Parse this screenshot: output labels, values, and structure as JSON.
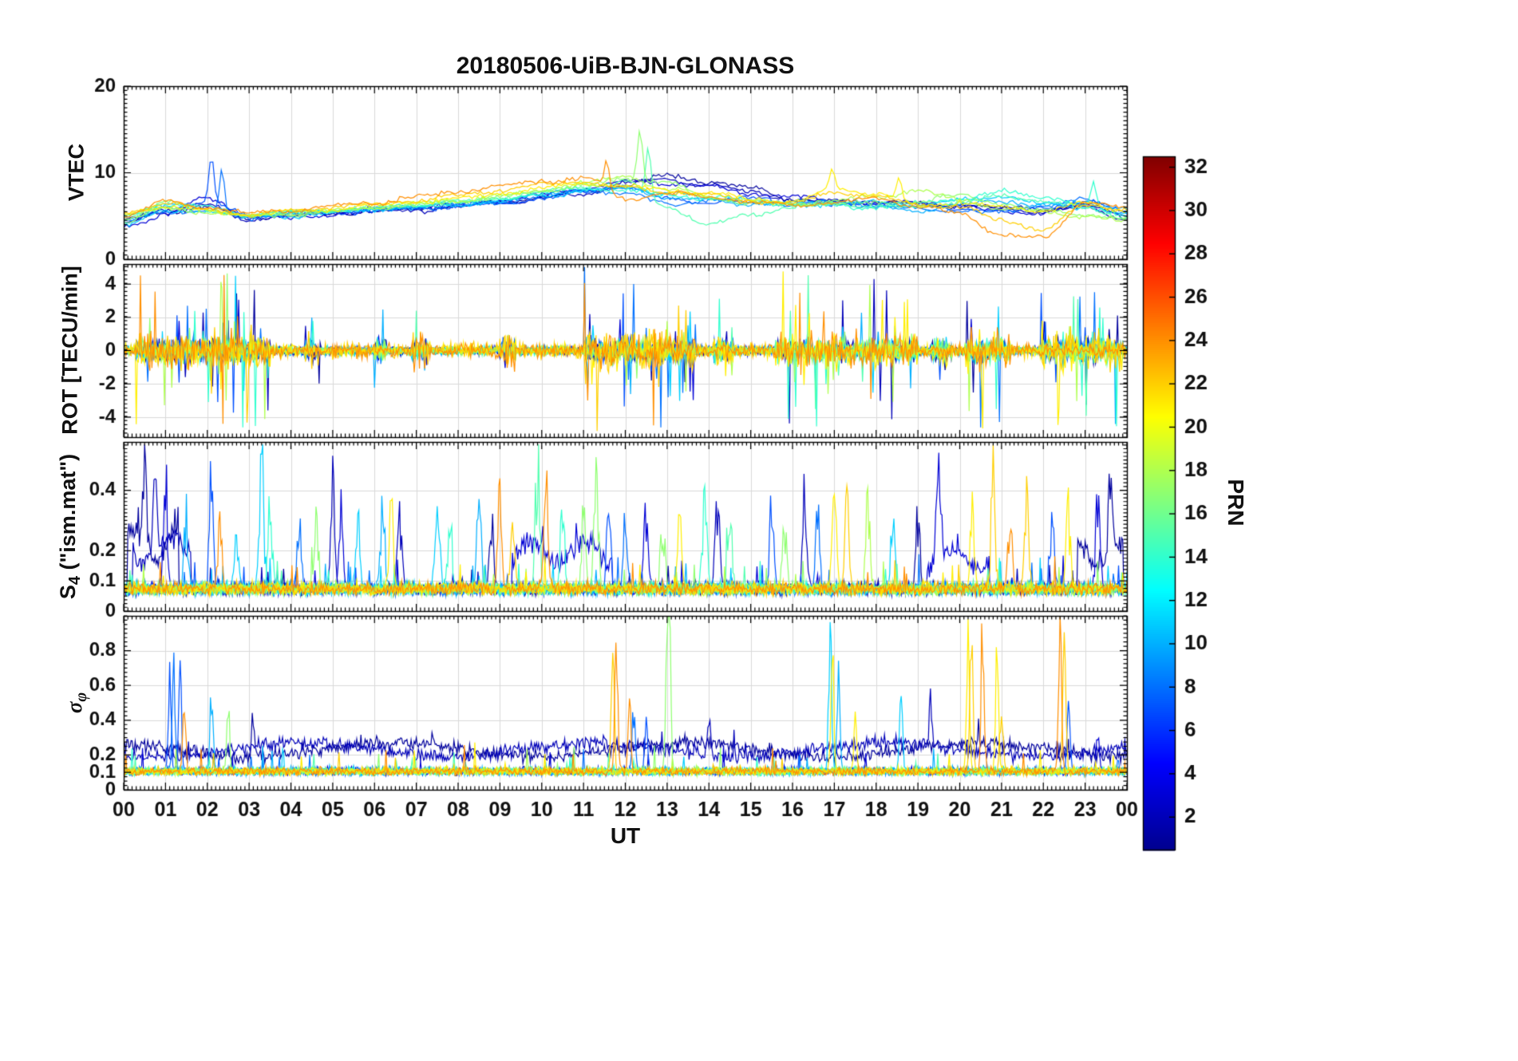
{
  "chart_data": {
    "type": "line",
    "title": "20180506-UiB-BJN-GLONASS",
    "xlabel": "UT",
    "x_range": [
      0,
      24
    ],
    "xticks": [
      0,
      1,
      2,
      3,
      4,
      5,
      6,
      7,
      8,
      9,
      10,
      11,
      12,
      13,
      14,
      15,
      16,
      17,
      18,
      19,
      20,
      21,
      22,
      23,
      24
    ],
    "xtick_labels": [
      "00",
      "01",
      "02",
      "03",
      "04",
      "05",
      "06",
      "07",
      "08",
      "09",
      "10",
      "11",
      "12",
      "13",
      "14",
      "15",
      "16",
      "17",
      "18",
      "19",
      "20",
      "21",
      "22",
      "23",
      "00"
    ],
    "grid": true,
    "style": {
      "grid_color": "#d9d9d9",
      "axis_color": "#000000",
      "background": "#ffffff",
      "tick_label_color": "#111111"
    },
    "prns": [
      1,
      2,
      3,
      7,
      8,
      10,
      11,
      14,
      15,
      17,
      18,
      21,
      22,
      24
    ],
    "colorbar": {
      "label": "PRN",
      "range": [
        0.5,
        32.5
      ],
      "ticks": [
        2,
        4,
        6,
        8,
        10,
        12,
        14,
        16,
        18,
        20,
        22,
        24,
        26,
        28,
        30,
        32
      ],
      "colormap_stops": [
        {
          "pos": 0.0,
          "color": "#00008F"
        },
        {
          "pos": 0.125,
          "color": "#0000FF"
        },
        {
          "pos": 0.375,
          "color": "#00FFFF"
        },
        {
          "pos": 0.625,
          "color": "#FFFF00"
        },
        {
          "pos": 0.875,
          "color": "#FF0000"
        },
        {
          "pos": 1.0,
          "color": "#800000"
        }
      ]
    },
    "panels": [
      {
        "name": "VTEC",
        "ylabel_base": "VTEC",
        "ylim": [
          0,
          20
        ],
        "yticks": [
          0,
          10,
          20
        ],
        "ytick_labels": [
          "0",
          "10",
          "20"
        ],
        "yminor": 0.5,
        "noise": 0.5,
        "series": [
          {
            "prn": 1,
            "hourly": [
              4.5,
              5.5,
              6.0,
              4.8,
              5.0,
              5.3,
              5.6,
              5.8,
              6.2,
              6.6,
              7.2,
              7.8,
              8.6,
              9.6,
              9.0,
              8.2,
              7.0,
              6.6,
              6.8,
              6.4,
              6.2,
              6.0,
              5.8,
              6.2,
              5.0
            ]
          },
          {
            "prn": 2,
            "hourly": [
              4.2,
              5.8,
              6.2,
              4.6,
              5.2,
              5.5,
              5.4,
              5.7,
              6.0,
              6.5,
              7.0,
              7.6,
              8.8,
              9.2,
              8.6,
              7.8,
              6.8,
              6.4,
              6.6,
              6.2,
              6.4,
              5.8,
              5.6,
              6.0,
              4.6
            ]
          },
          {
            "prn": 3,
            "hourly": [
              3.8,
              5.2,
              7.0,
              5.0,
              4.8,
              5.2,
              5.8,
              6.0,
              6.3,
              6.8,
              7.4,
              8.2,
              9.0,
              8.8,
              8.4,
              7.6,
              7.2,
              6.8,
              6.4,
              6.6,
              6.0,
              5.6,
              5.4,
              6.4,
              5.2
            ]
          },
          {
            "prn": 7,
            "hourly": [
              4.0,
              6.0,
              6.5,
              5.2,
              5.0,
              5.4,
              5.6,
              5.9,
              6.1,
              6.4,
              7.0,
              7.8,
              8.4,
              7.0,
              6.6,
              7.0,
              6.6,
              6.2,
              6.6,
              6.0,
              5.8,
              5.6,
              6.0,
              6.6,
              5.6
            ]
          },
          {
            "prn": 8,
            "hourly": [
              4.4,
              5.6,
              5.4,
              4.8,
              5.2,
              5.6,
              5.8,
              6.0,
              6.2,
              6.6,
              7.2,
              8.0,
              7.6,
              6.4,
              6.8,
              6.6,
              6.4,
              6.6,
              6.2,
              5.8,
              5.6,
              5.4,
              6.2,
              6.8,
              5.4
            ]
          },
          {
            "prn": 10,
            "hourly": [
              4.6,
              6.2,
              5.8,
              5.0,
              5.4,
              5.5,
              5.7,
              6.0,
              6.4,
              6.8,
              7.4,
              8.0,
              8.2,
              7.2,
              6.8,
              6.4,
              6.6,
              6.8,
              6.0,
              5.6,
              6.4,
              6.8,
              6.2,
              6.6,
              5.8
            ]
          },
          {
            "prn": 11,
            "hourly": [
              4.2,
              5.4,
              5.6,
              4.9,
              5.1,
              5.4,
              5.8,
              6.1,
              6.3,
              6.7,
              7.3,
              7.9,
              8.3,
              7.6,
              7.0,
              6.6,
              6.2,
              6.4,
              6.6,
              6.2,
              6.8,
              7.4,
              6.4,
              6.0,
              5.2
            ]
          },
          {
            "prn": 14,
            "hourly": [
              4.8,
              6.4,
              6.0,
              5.1,
              5.3,
              5.6,
              5.9,
              6.2,
              6.5,
              7.0,
              7.6,
              8.2,
              8.0,
              7.4,
              7.2,
              6.8,
              6.4,
              6.2,
              6.0,
              6.4,
              7.0,
              7.8,
              7.2,
              6.2,
              5.0
            ]
          },
          {
            "prn": 15,
            "hourly": [
              5.0,
              6.0,
              5.6,
              5.2,
              5.4,
              5.7,
              6.0,
              6.3,
              6.6,
              7.1,
              7.7,
              8.4,
              9.0,
              6.0,
              4.0,
              5.2,
              6.0,
              6.4,
              6.2,
              6.0,
              6.6,
              7.2,
              6.8,
              5.8,
              4.8
            ]
          },
          {
            "prn": 17,
            "hourly": [
              4.4,
              6.6,
              5.8,
              5.0,
              5.2,
              5.5,
              5.9,
              6.3,
              6.7,
              7.2,
              7.8,
              8.6,
              9.2,
              9.0,
              7.0,
              6.6,
              6.2,
              6.6,
              6.4,
              6.8,
              7.4,
              6.4,
              5.6,
              5.2,
              4.6
            ]
          },
          {
            "prn": 18,
            "hourly": [
              4.6,
              5.8,
              5.4,
              4.9,
              5.3,
              5.6,
              6.0,
              6.4,
              6.8,
              7.3,
              8.0,
              8.8,
              9.6,
              8.0,
              7.2,
              6.8,
              6.4,
              6.8,
              7.2,
              8.0,
              6.8,
              5.8,
              5.4,
              5.0,
              4.4
            ]
          },
          {
            "prn": 21,
            "hourly": [
              5.2,
              6.2,
              5.6,
              5.1,
              5.5,
              5.8,
              6.2,
              6.6,
              7.0,
              7.6,
              8.2,
              8.8,
              8.4,
              8.0,
              7.6,
              7.0,
              6.6,
              8.2,
              7.6,
              6.2,
              6.6,
              6.0,
              5.6,
              6.4,
              5.6
            ]
          },
          {
            "prn": 22,
            "hourly": [
              5.4,
              6.4,
              5.8,
              5.2,
              5.6,
              6.0,
              6.4,
              6.8,
              7.4,
              8.0,
              8.6,
              9.0,
              8.2,
              7.8,
              7.4,
              6.8,
              6.4,
              7.8,
              7.2,
              6.4,
              6.0,
              4.6,
              3.4,
              6.2,
              5.8
            ]
          },
          {
            "prn": 24,
            "hourly": [
              5.0,
              6.6,
              6.0,
              5.3,
              5.7,
              6.1,
              6.6,
              7.2,
              7.8,
              8.4,
              9.0,
              9.4,
              7.0,
              7.6,
              7.2,
              6.6,
              6.2,
              6.6,
              7.0,
              6.2,
              5.2,
              2.8,
              2.4,
              6.6,
              6.0
            ]
          }
        ],
        "spike_events": [
          [
            2.1,
            12.0,
            7
          ],
          [
            2.35,
            10.5,
            8
          ],
          [
            11.55,
            11.5,
            24
          ],
          [
            12.35,
            15.0,
            17
          ],
          [
            12.55,
            13.0,
            15
          ],
          [
            16.95,
            10.5,
            21
          ],
          [
            18.55,
            9.5,
            21
          ],
          [
            23.2,
            9.0,
            14
          ]
        ]
      },
      {
        "name": "ROT",
        "ylabel_base": "ROT [TECU/min]",
        "ylim": [
          -5.2,
          5.2
        ],
        "yticks": [
          -4,
          -2,
          0,
          2,
          4
        ],
        "ytick_labels": [
          "-4",
          "-2",
          "0",
          "2",
          "4"
        ],
        "yminor": 0.25,
        "base_noise": 0.24,
        "burst_windows": [
          [
            0.3,
            3.5,
            4.6
          ],
          [
            4.3,
            4.7,
            2.0
          ],
          [
            6.0,
            6.3,
            2.2
          ],
          [
            6.9,
            7.3,
            2.6
          ],
          [
            9.0,
            9.4,
            2.0
          ],
          [
            11.0,
            13.7,
            5.0
          ],
          [
            14.1,
            14.6,
            3.0
          ],
          [
            15.6,
            19.0,
            4.6
          ],
          [
            19.3,
            19.8,
            3.4
          ],
          [
            20.1,
            21.2,
            4.6
          ],
          [
            21.9,
            23.9,
            4.6
          ]
        ]
      },
      {
        "name": "S4",
        "ylabel_base": "S",
        "ylabel_sub": "4",
        "ylabel_rest": " (\"ism.mat\")",
        "ylim": [
          0,
          0.56
        ],
        "yticks": [
          0,
          0.1,
          0.2,
          0.4
        ],
        "ytick_labels": [
          "0",
          "0.1",
          "0.2",
          "0.4"
        ],
        "yminor": 0.0125,
        "baseline": 0.05,
        "events": [
          [
            0.5,
            0.33,
            1
          ],
          [
            0.75,
            0.3,
            2
          ],
          [
            1.0,
            0.4,
            3
          ],
          [
            1.5,
            0.28,
            10
          ],
          [
            2.1,
            0.45,
            7
          ],
          [
            2.3,
            0.25,
            24
          ],
          [
            2.7,
            0.22,
            11
          ],
          [
            3.3,
            0.56,
            11
          ],
          [
            3.5,
            0.3,
            14
          ],
          [
            4.2,
            0.25,
            8
          ],
          [
            4.6,
            0.3,
            17
          ],
          [
            5.0,
            0.36,
            2
          ],
          [
            5.2,
            0.3,
            3
          ],
          [
            5.6,
            0.25,
            11
          ],
          [
            6.2,
            0.35,
            10
          ],
          [
            6.4,
            0.3,
            21
          ],
          [
            6.6,
            0.28,
            2
          ],
          [
            7.5,
            0.37,
            11
          ],
          [
            7.8,
            0.3,
            14
          ],
          [
            8.5,
            0.35,
            10
          ],
          [
            8.8,
            0.28,
            1
          ],
          [
            9.0,
            0.35,
            24
          ],
          [
            9.3,
            0.3,
            22
          ],
          [
            9.9,
            0.5,
            15
          ],
          [
            10.1,
            0.45,
            24
          ],
          [
            10.5,
            0.3,
            14
          ],
          [
            11.0,
            0.28,
            17
          ],
          [
            11.3,
            0.45,
            17
          ],
          [
            11.6,
            0.3,
            7
          ],
          [
            12.0,
            0.3,
            8
          ],
          [
            12.5,
            0.35,
            3
          ],
          [
            12.9,
            0.3,
            17
          ],
          [
            13.3,
            0.28,
            21
          ],
          [
            13.9,
            0.42,
            14
          ],
          [
            14.2,
            0.35,
            2
          ],
          [
            14.5,
            0.3,
            15
          ],
          [
            15.5,
            0.3,
            7
          ],
          [
            15.8,
            0.28,
            17
          ],
          [
            16.3,
            0.37,
            2
          ],
          [
            16.6,
            0.3,
            8
          ],
          [
            17.0,
            0.33,
            21
          ],
          [
            17.3,
            0.35,
            22
          ],
          [
            17.8,
            0.3,
            18
          ],
          [
            18.4,
            0.28,
            11
          ],
          [
            19.0,
            0.25,
            1
          ],
          [
            19.5,
            0.35,
            3
          ],
          [
            20.3,
            0.3,
            21
          ],
          [
            20.8,
            0.42,
            22
          ],
          [
            21.2,
            0.3,
            24
          ],
          [
            21.6,
            0.35,
            22
          ],
          [
            22.2,
            0.3,
            7
          ],
          [
            22.6,
            0.28,
            21
          ],
          [
            23.3,
            0.36,
            3
          ],
          [
            23.6,
            0.3,
            1
          ]
        ],
        "elevated": [
          [
            3,
            9.3,
            11.7,
            0.16
          ],
          [
            2,
            0.2,
            1.6,
            0.18
          ],
          [
            3,
            19.2,
            20.7,
            0.13
          ],
          [
            1,
            22.8,
            23.9,
            0.16
          ],
          [
            1,
            0.1,
            1.3,
            0.2
          ]
        ]
      },
      {
        "name": "sigma_phi",
        "ylabel_base": "σ",
        "ylabel_sub": "φ",
        "ylim": [
          0,
          1.0
        ],
        "yticks": [
          0,
          0.1,
          0.2,
          0.4,
          0.6,
          0.8
        ],
        "ytick_labels": [
          "0",
          "0.1",
          "0.2",
          "0.4",
          "0.6",
          "0.8"
        ],
        "yminor": 0.025,
        "baseline": 0.08,
        "events": [
          [
            1.1,
            0.6,
            7
          ],
          [
            1.2,
            0.7,
            8
          ],
          [
            1.35,
            0.62,
            7
          ],
          [
            1.45,
            0.48,
            24
          ],
          [
            2.1,
            0.55,
            10
          ],
          [
            2.5,
            0.44,
            17
          ],
          [
            3.1,
            0.28,
            1
          ],
          [
            11.7,
            1.0,
            22
          ],
          [
            11.78,
            0.95,
            24
          ],
          [
            12.1,
            0.45,
            24
          ],
          [
            12.2,
            0.4,
            8
          ],
          [
            12.5,
            0.3,
            7
          ],
          [
            13.0,
            1.0,
            17
          ],
          [
            13.06,
            0.8,
            17
          ],
          [
            14.0,
            0.24,
            2
          ],
          [
            16.9,
            1.0,
            11
          ],
          [
            16.95,
            0.85,
            21
          ],
          [
            17.1,
            0.6,
            10
          ],
          [
            17.5,
            0.34,
            21
          ],
          [
            18.6,
            0.5,
            11
          ],
          [
            19.3,
            0.3,
            2
          ],
          [
            20.2,
            1.0,
            21
          ],
          [
            20.28,
            0.9,
            22
          ],
          [
            20.55,
            1.0,
            24
          ],
          [
            20.9,
            0.85,
            21
          ],
          [
            21.0,
            0.5,
            22
          ],
          [
            22.4,
            1.0,
            24
          ],
          [
            22.5,
            0.9,
            22
          ],
          [
            22.6,
            0.5,
            7
          ],
          [
            23.3,
            0.3,
            3
          ]
        ]
      }
    ]
  }
}
